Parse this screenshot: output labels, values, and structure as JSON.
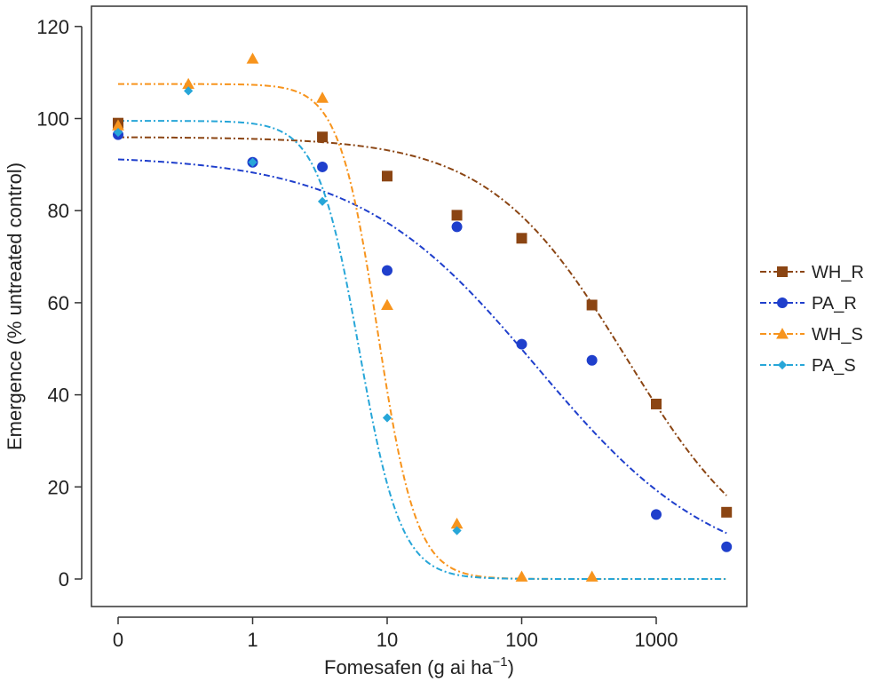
{
  "chart_data": {
    "type": "scatter",
    "title": "",
    "xlabel": "Fomesafen (g ai ha",
    "xlabel_sup": "−1",
    "xlabel_close": ")",
    "ylabel": "Emergence (% untreated control)",
    "xscale": "log",
    "xlim": [
      0.1,
      3333
    ],
    "ylim": [
      -6,
      120
    ],
    "xticks": [
      {
        "value": 0.1,
        "label": "0"
      },
      {
        "value": 1,
        "label": "1"
      },
      {
        "value": 10,
        "label": "10"
      },
      {
        "value": 100,
        "label": "100"
      },
      {
        "value": 1000,
        "label": "1000"
      }
    ],
    "yticks": [
      0,
      20,
      40,
      60,
      80,
      100,
      120
    ],
    "grid": false,
    "legend_position": "right",
    "series": [
      {
        "name": "WH_R",
        "color": "#8B4513",
        "marker": "square",
        "points": [
          [
            0.1,
            99
          ],
          [
            3.3,
            96
          ],
          [
            10,
            87.5
          ],
          [
            33,
            79
          ],
          [
            100,
            74
          ],
          [
            333,
            59.5
          ],
          [
            1000,
            38
          ],
          [
            3333,
            14.5
          ]
        ],
        "fit": {
          "upper": 96,
          "lower": 0,
          "ed50": 600,
          "slope": 0.85
        }
      },
      {
        "name": "PA_R",
        "color": "#1F3FCC",
        "marker": "circle",
        "points": [
          [
            0.1,
            96.5
          ],
          [
            1,
            90.5
          ],
          [
            3.3,
            89.5
          ],
          [
            10,
            67
          ],
          [
            33,
            76.5
          ],
          [
            100,
            51
          ],
          [
            333,
            47.5
          ],
          [
            1000,
            14
          ],
          [
            3333,
            7
          ]
        ],
        "fit": {
          "upper": 92,
          "lower": 0,
          "ed50": 130,
          "slope": 0.65
        }
      },
      {
        "name": "WH_S",
        "color": "#F7941D",
        "marker": "triangle",
        "points": [
          [
            0.1,
            98.5
          ],
          [
            0.333,
            107.5
          ],
          [
            1,
            113
          ],
          [
            3.3,
            104.5
          ],
          [
            10,
            59.5
          ],
          [
            33,
            12
          ],
          [
            100,
            0.5
          ],
          [
            333,
            0.5
          ]
        ],
        "fit": {
          "upper": 107.5,
          "lower": 0,
          "ed50": 8.5,
          "slope": 3.0
        }
      },
      {
        "name": "PA_S",
        "color": "#27A6D8",
        "marker": "diamond",
        "points": [
          [
            0.1,
            97
          ],
          [
            0.333,
            106
          ],
          [
            1,
            90.5
          ],
          [
            3.3,
            82
          ],
          [
            10,
            35
          ],
          [
            33,
            10.5
          ]
        ],
        "fit": {
          "upper": 99.5,
          "lower": 0,
          "ed50": 6.2,
          "slope": 2.8
        }
      }
    ]
  }
}
